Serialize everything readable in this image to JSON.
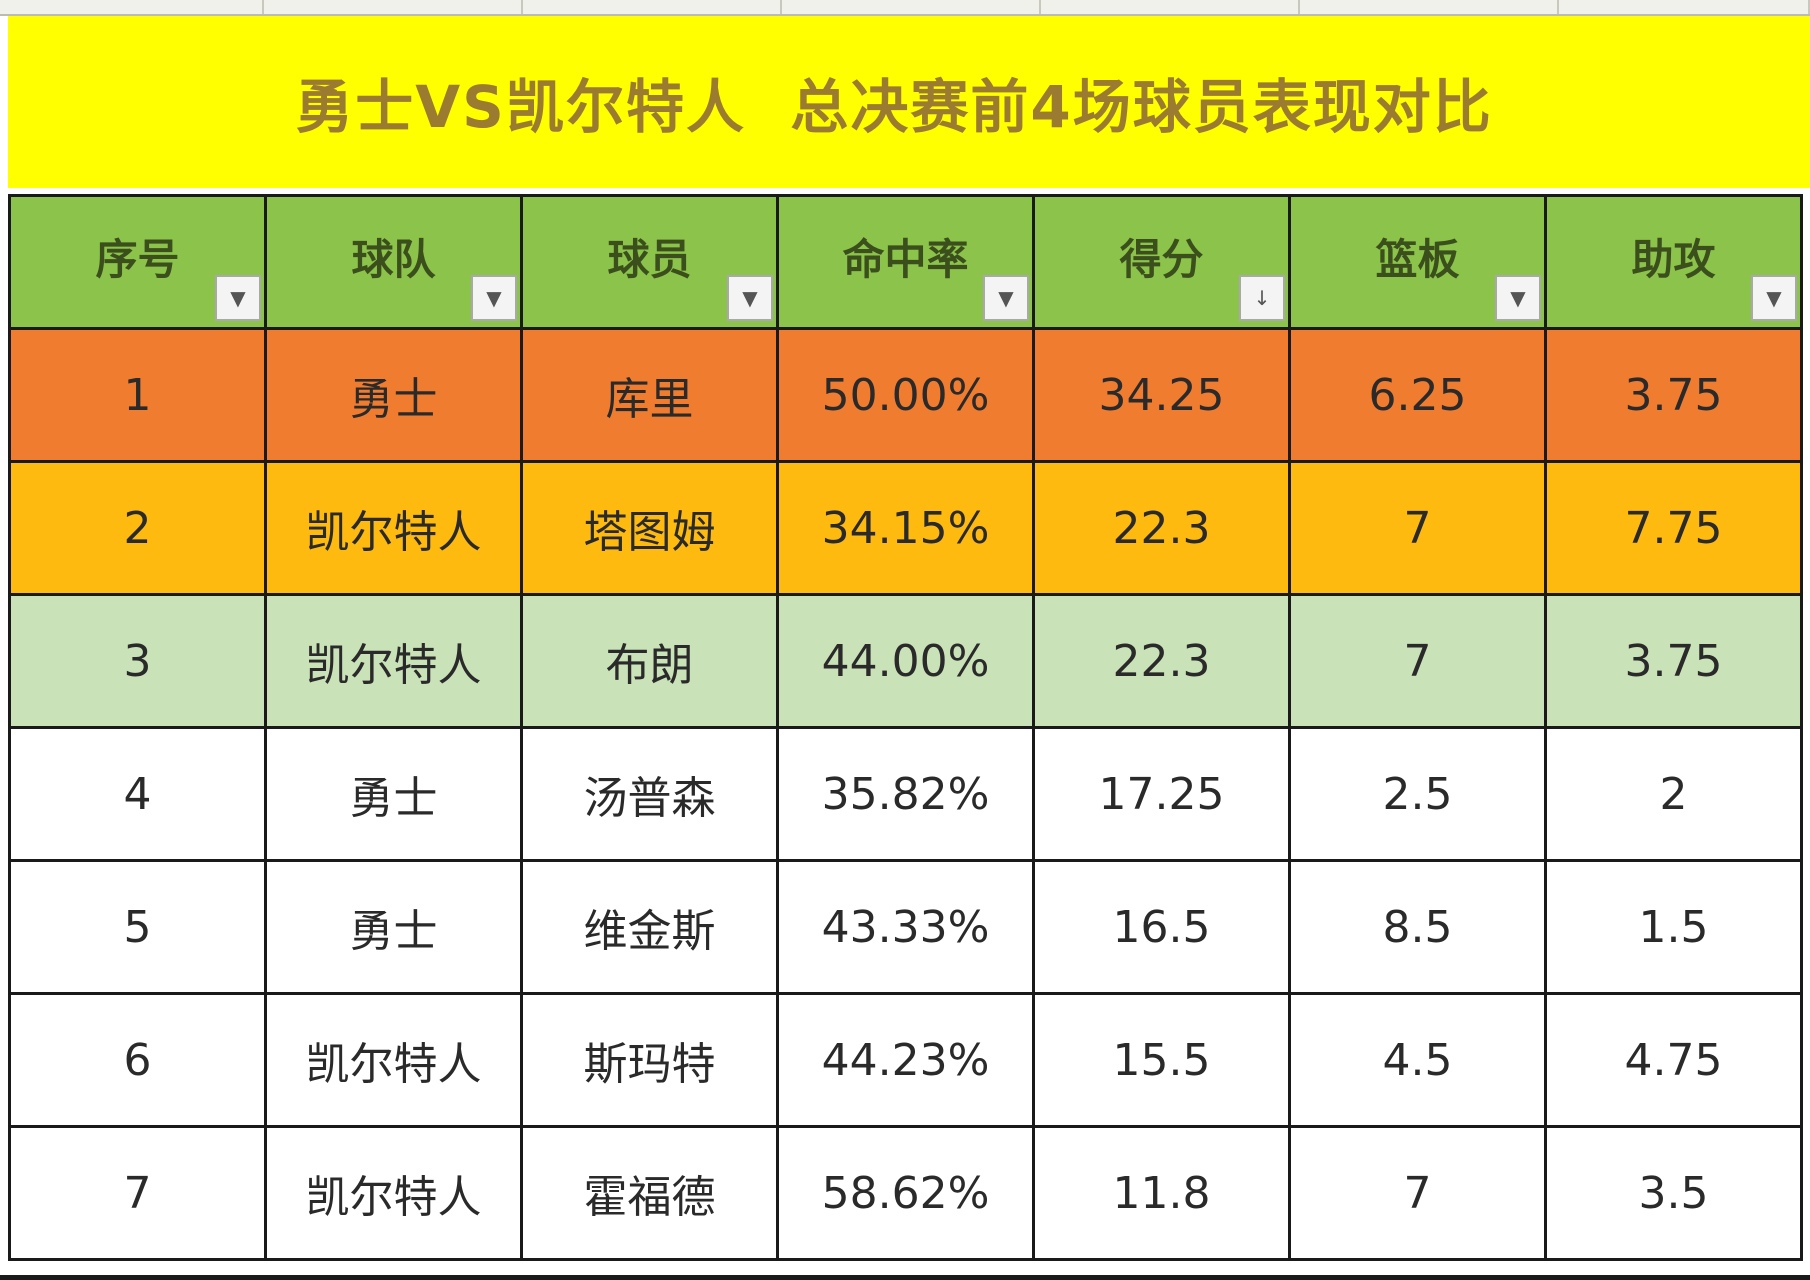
{
  "title": "勇士VS凯尔特人  总决赛前4场球员表现对比",
  "columns": [
    {
      "label": "序号",
      "filter_icon": "▼"
    },
    {
      "label": "球队",
      "filter_icon": "▼"
    },
    {
      "label": "球员",
      "filter_icon": "▼"
    },
    {
      "label": "命中率",
      "filter_icon": "▼"
    },
    {
      "label": "得分",
      "filter_icon": "↓"
    },
    {
      "label": "篮板",
      "filter_icon": "▼"
    },
    {
      "label": "助攻",
      "filter_icon": "▼"
    }
  ],
  "rows": [
    {
      "no": "1",
      "team": "勇士",
      "player": "库里",
      "fg": "50.00%",
      "pts": "34.25",
      "reb": "6.25",
      "ast": "3.75"
    },
    {
      "no": "2",
      "team": "凯尔特人",
      "player": "塔图姆",
      "fg": "34.15%",
      "pts": "22.3",
      "reb": "7",
      "ast": "7.75"
    },
    {
      "no": "3",
      "team": "凯尔特人",
      "player": "布朗",
      "fg": "44.00%",
      "pts": "22.3",
      "reb": "7",
      "ast": "3.75"
    },
    {
      "no": "4",
      "team": "勇士",
      "player": "汤普森",
      "fg": "35.82%",
      "pts": "17.25",
      "reb": "2.5",
      "ast": "2"
    },
    {
      "no": "5",
      "team": "勇士",
      "player": "维金斯",
      "fg": "43.33%",
      "pts": "16.5",
      "reb": "8.5",
      "ast": "1.5"
    },
    {
      "no": "6",
      "team": "凯尔特人",
      "player": "斯玛特",
      "fg": "44.23%",
      "pts": "15.5",
      "reb": "4.5",
      "ast": "4.75"
    },
    {
      "no": "7",
      "team": "凯尔特人",
      "player": "霍福德",
      "fg": "58.62%",
      "pts": "11.8",
      "reb": "7",
      "ast": "3.5"
    }
  ],
  "colors": {
    "title_bg": "#ffff00",
    "header_bg": "#8cc34a",
    "row1_bg": "#f07c30",
    "row2_bg": "#ffba10",
    "row3_bg": "#c9e2b8"
  }
}
